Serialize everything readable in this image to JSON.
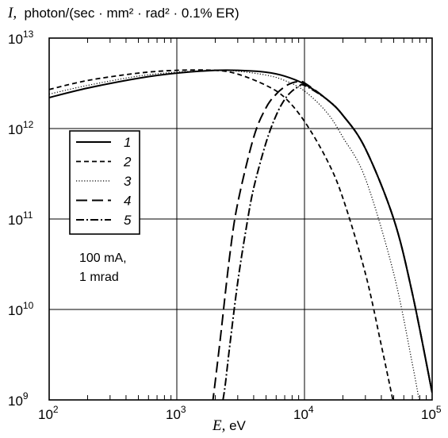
{
  "chart_data": {
    "type": "line",
    "title": "",
    "ylabel_var": "I,",
    "ylabel_unit": "photon/(sec · mm² · rad² · 0.1% ER)",
    "xlabel_var": "E,",
    "xlabel_unit": "eV",
    "xscale": "log",
    "yscale": "log",
    "xlim": [
      100,
      100000
    ],
    "ylim": [
      1000000000,
      10000000000000
    ],
    "x_ticks": [
      {
        "base": "10",
        "exp": "2"
      },
      {
        "base": "10",
        "exp": "3"
      },
      {
        "base": "10",
        "exp": "4"
      },
      {
        "base": "10",
        "exp": "5"
      }
    ],
    "y_ticks": [
      {
        "base": "10",
        "exp": "9"
      },
      {
        "base": "10",
        "exp": "10"
      },
      {
        "base": "10",
        "exp": "11"
      },
      {
        "base": "10",
        "exp": "12"
      },
      {
        "base": "10",
        "exp": "13"
      }
    ],
    "grid": true,
    "legend_position": "left",
    "annotation_lines": [
      "100 mA,",
      "1 mrad"
    ],
    "series": [
      {
        "name": "1",
        "dash": "solid",
        "x": [
          100,
          200,
          500,
          1000,
          2000,
          3000,
          5000,
          7000,
          10000,
          15000,
          20000,
          30000,
          50000,
          70000,
          100000
        ],
        "y": [
          2200000000000.0,
          2800000000000.0,
          3600000000000.0,
          4100000000000.0,
          4400000000000.0,
          4400000000000.0,
          4200000000000.0,
          3800000000000.0,
          3100000000000.0,
          2100000000000.0,
          1400000000000.0,
          600000000000.0,
          100000000000.0,
          15000000000.0,
          1200000000.0
        ]
      },
      {
        "name": "2",
        "dash": "short-dash",
        "x": [
          100,
          200,
          500,
          1000,
          2000,
          3000,
          5000,
          7000,
          10000,
          15000,
          20000,
          30000,
          40000,
          50000
        ],
        "y": [
          2700000000000.0,
          3400000000000.0,
          4100000000000.0,
          4400000000000.0,
          4400000000000.0,
          4000000000000.0,
          3000000000000.0,
          2200000000000.0,
          1200000000000.0,
          450000000000.0,
          170000000000.0,
          25000000000.0,
          4000000000.0,
          900000000.0
        ]
      },
      {
        "name": "3",
        "dash": "dotted",
        "x": [
          100,
          200,
          500,
          1000,
          2000,
          3000,
          5000,
          7000,
          10000,
          15000,
          20000,
          30000,
          50000,
          70000,
          80000
        ],
        "y": [
          2400000000000.0,
          3000000000000.0,
          3800000000000.0,
          4200000000000.0,
          4400000000000.0,
          4300000000000.0,
          3900000000000.0,
          3400000000000.0,
          2600000000000.0,
          1500000000000.0,
          800000000000.0,
          280000000000.0,
          25000000000.0,
          2500000000.0,
          900000000.0
        ]
      },
      {
        "name": "4",
        "dash": "long-dash",
        "x": [
          1900,
          2000,
          2200,
          2600,
          3000,
          4000,
          5000,
          6000,
          7000,
          8000,
          9000,
          10000,
          15000,
          20000,
          30000,
          50000,
          70000,
          100000
        ],
        "y": [
          900000000.0,
          1600000000.0,
          5000000000.0,
          40000000000.0,
          150000000000.0,
          800000000000.0,
          1700000000000.0,
          2400000000000.0,
          2900000000000.0,
          3200000000000.0,
          3300000000000.0,
          3200000000000.0,
          2100000000000.0,
          1400000000000.0,
          600000000000.0,
          100000000000.0,
          15000000000.0,
          1200000000.0
        ]
      },
      {
        "name": "5",
        "dash": "dash-dot",
        "x": [
          2300,
          2400,
          2600,
          3000,
          3500,
          4000,
          5000,
          6000,
          7000,
          8000,
          9000,
          10000,
          15000,
          20000,
          30000,
          50000,
          70000,
          100000
        ],
        "y": [
          1000000000.0,
          1500000000.0,
          4000000000.0,
          20000000000.0,
          80000000000.0,
          220000000000.0,
          700000000000.0,
          1400000000000.0,
          2100000000000.0,
          2600000000000.0,
          2900000000000.0,
          3000000000000.0,
          2100000000000.0,
          1400000000000.0,
          600000000000.0,
          100000000000.0,
          15000000000.0,
          1200000000.0
        ]
      }
    ]
  }
}
